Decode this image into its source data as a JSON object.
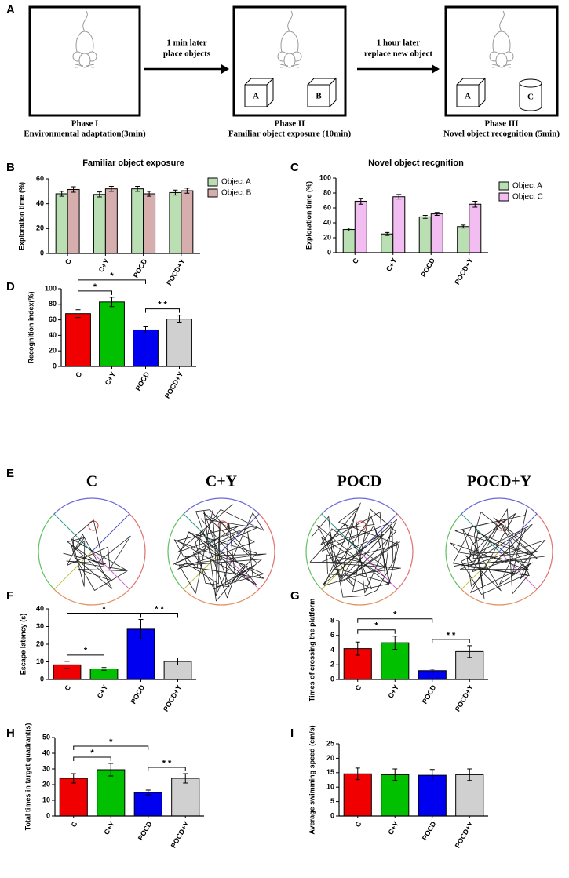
{
  "diagram": {
    "panel": "A",
    "phases": [
      {
        "title": "Phase I",
        "caption": "Environmental adaptation(3min)",
        "objects": []
      },
      {
        "title": "Phase II",
        "caption": "Familiar object exposure (10min)",
        "objects": [
          "A",
          "B"
        ]
      },
      {
        "title": "Phase III",
        "caption": "Novel object recognition (5min)",
        "objects": [
          "A",
          "C"
        ]
      }
    ],
    "transitions": [
      [
        "1 min later",
        "place objects"
      ],
      [
        "1 hour later",
        "replace new object"
      ]
    ]
  },
  "tracks": {
    "panel": "E",
    "groups": [
      "C",
      "C+Y",
      "POCD",
      "POCD+Y"
    ]
  },
  "chart_data": [
    {
      "type": "bar",
      "panel": "B",
      "title": "Familiar object exposure",
      "y_label": "Exploration time (%)",
      "categories": [
        "C",
        "C+Y",
        "POCD",
        "POCD+Y"
      ],
      "series": [
        {
          "name": "Object A",
          "color": "#b9dfb3",
          "values": [
            48,
            47.5,
            52,
            49
          ],
          "errors": [
            2,
            2,
            2,
            2
          ]
        },
        {
          "name": "Object B",
          "color": "#d6aeae",
          "values": [
            51.5,
            52,
            48,
            50.5
          ],
          "errors": [
            2.2,
            2,
            2,
            2
          ]
        }
      ],
      "ylim": [
        0,
        60
      ],
      "yticks": [
        0,
        20,
        40,
        60
      ]
    },
    {
      "type": "bar",
      "panel": "C",
      "title": "Novel object recgnition",
      "y_label": "Exploration time (%)",
      "categories": [
        "C",
        "C+Y",
        "POCD",
        "POCD+Y"
      ],
      "series": [
        {
          "name": "Object A",
          "color": "#b9dfb3",
          "values": [
            31,
            25,
            48,
            35
          ],
          "errors": [
            2,
            2,
            2,
            2
          ]
        },
        {
          "name": "Object C",
          "color": "#f2bdf0",
          "values": [
            69,
            75,
            52,
            65
          ],
          "errors": [
            4,
            3,
            2,
            4
          ]
        }
      ],
      "ylim": [
        0,
        100
      ],
      "yticks": [
        0,
        20,
        40,
        60,
        80,
        100
      ]
    },
    {
      "type": "bar",
      "panel": "D",
      "y_label": "Recognition index(%)",
      "categories": [
        "C",
        "C+Y",
        "POCD",
        "POCD+Y"
      ],
      "values": [
        68,
        83,
        47,
        61
      ],
      "errors": [
        5,
        6,
        4,
        5
      ],
      "colors": [
        "#f00000",
        "#00c000",
        "#0000f0",
        "#d0d0d0"
      ],
      "ylim": [
        0,
        100
      ],
      "yticks": [
        0,
        20,
        40,
        60,
        80,
        100
      ],
      "annotations": [
        "*",
        "*",
        "* *"
      ]
    },
    {
      "type": "bar",
      "panel": "F",
      "y_label": "Escape latency (s)",
      "categories": [
        "C",
        "C+Y",
        "POCD",
        "POCD+Y"
      ],
      "values": [
        8.3,
        6,
        28.5,
        10.2
      ],
      "errors": [
        2,
        0.8,
        5.5,
        2
      ],
      "colors": [
        "#f00000",
        "#00c000",
        "#0000f0",
        "#d0d0d0"
      ],
      "ylim": [
        0,
        40
      ],
      "yticks": [
        0,
        10,
        20,
        30,
        40
      ],
      "annotations": [
        "*",
        "*",
        "* *"
      ]
    },
    {
      "type": "bar",
      "panel": "G",
      "y_label": "Times of crossing the platform",
      "categories": [
        "C",
        "C+Y",
        "POCD",
        "POCD+Y"
      ],
      "values": [
        4.2,
        5,
        1.2,
        3.8
      ],
      "errors": [
        0.9,
        0.9,
        0.2,
        0.8
      ],
      "colors": [
        "#f00000",
        "#00c000",
        "#0000f0",
        "#d0d0d0"
      ],
      "ylim": [
        0,
        8
      ],
      "yticks": [
        0,
        2,
        4,
        6,
        8
      ],
      "annotations": [
        "*",
        "*",
        "* *"
      ]
    },
    {
      "type": "bar",
      "panel": "H",
      "y_label": "Total times in target quadrant(s)",
      "categories": [
        "C",
        "C+Y",
        "POCD",
        "POCD+Y"
      ],
      "values": [
        24,
        29.5,
        15,
        24
      ],
      "errors": [
        3,
        4,
        1.5,
        3
      ],
      "colors": [
        "#f00000",
        "#00c000",
        "#0000f0",
        "#d0d0d0"
      ],
      "ylim": [
        0,
        50
      ],
      "yticks": [
        0,
        10,
        20,
        30,
        40,
        50
      ],
      "annotations": [
        "*",
        "*",
        "* *"
      ]
    },
    {
      "type": "bar",
      "panel": "I",
      "y_label": "Average swimming speed (cm/s)",
      "categories": [
        "C",
        "C+Y",
        "POCD",
        "POCD+Y"
      ],
      "values": [
        14.6,
        14.3,
        14.1,
        14.3
      ],
      "errors": [
        2,
        2,
        2,
        2
      ],
      "colors": [
        "#f00000",
        "#00c000",
        "#0000f0",
        "#d0d0d0"
      ],
      "ylim": [
        0,
        25
      ],
      "yticks": [
        0,
        5,
        10,
        15,
        20,
        25
      ]
    }
  ]
}
